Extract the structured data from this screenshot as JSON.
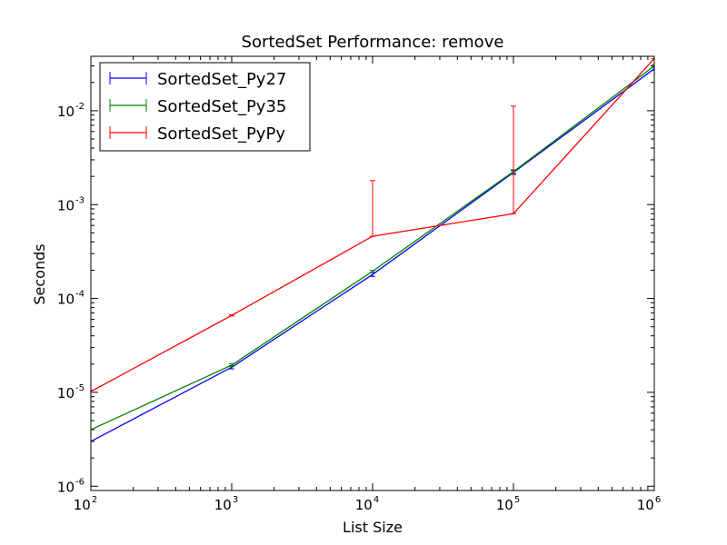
{
  "chart_data": {
    "type": "line",
    "title": "SortedSet Performance: remove",
    "xlabel": "List Size",
    "ylabel": "Seconds",
    "xscale": "log",
    "yscale": "log",
    "xlim": [
      100,
      1000000
    ],
    "ylim": [
      9e-07,
      0.038
    ],
    "x": [
      100,
      1000,
      10000,
      100000,
      1000000
    ],
    "x_ticks": [
      {
        "base": "10",
        "exp": "2"
      },
      {
        "base": "10",
        "exp": "3"
      },
      {
        "base": "10",
        "exp": "4"
      },
      {
        "base": "10",
        "exp": "5"
      },
      {
        "base": "10",
        "exp": "6"
      }
    ],
    "y_ticks": [
      {
        "base": "10",
        "exp": "-6"
      },
      {
        "base": "10",
        "exp": "-5"
      },
      {
        "base": "10",
        "exp": "-4"
      },
      {
        "base": "10",
        "exp": "-3"
      },
      {
        "base": "10",
        "exp": "-2"
      }
    ],
    "legend_position": "top-left",
    "grid": false,
    "series": [
      {
        "name": "SortedSet_Py27",
        "color": "#0000ff",
        "values": [
          3e-06,
          1.85e-05,
          0.00018,
          0.0022,
          0.028
        ],
        "err_low": [
          3e-06,
          1.78e-05,
          0.000172,
          0.0021,
          0.027
        ],
        "err_high": [
          3e-06,
          1.92e-05,
          0.00019,
          0.0023,
          0.029
        ]
      },
      {
        "name": "SortedSet_Py35",
        "color": "#008000",
        "values": [
          4e-06,
          1.95e-05,
          0.000195,
          0.00225,
          0.03
        ],
        "err_low": [
          4e-06,
          1.88e-05,
          0.00019,
          0.00215,
          0.029
        ],
        "err_high": [
          4e-06,
          2.02e-05,
          0.0002,
          0.00235,
          0.031
        ]
      },
      {
        "name": "SortedSet_PyPy",
        "color": "#ff0000",
        "values": [
          1.02e-05,
          6.6e-05,
          0.00046,
          0.0008,
          0.036
        ],
        "err_low": [
          1e-05,
          6.5e-05,
          0.00046,
          0.0008,
          0.036
        ],
        "err_high": [
          1.05e-05,
          6.7e-05,
          0.0018,
          0.0112,
          0.038
        ]
      }
    ]
  }
}
